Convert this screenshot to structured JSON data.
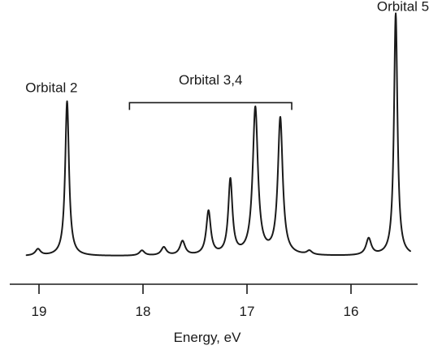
{
  "chart_data": {
    "type": "line",
    "title": "",
    "xlabel": "Energy, eV",
    "ylabel": "",
    "x_reversed": true,
    "xlim": [
      19.2,
      15.3
    ],
    "ylim": [
      0,
      1.0
    ],
    "grid": false,
    "legend": "none",
    "line_color": "#1a1a1a",
    "x_ticks": [
      {
        "value": 19,
        "label": "19"
      },
      {
        "value": 18,
        "label": "18"
      },
      {
        "value": 17,
        "label": "17"
      },
      {
        "value": 16,
        "label": "16"
      }
    ],
    "baseline": 0.03,
    "peaks": [
      {
        "x": 19.01,
        "height": 0.025,
        "width": 0.03
      },
      {
        "x": 18.73,
        "height": 0.6,
        "width": 0.022
      },
      {
        "x": 18.01,
        "height": 0.02,
        "width": 0.03
      },
      {
        "x": 17.8,
        "height": 0.032,
        "width": 0.03
      },
      {
        "x": 17.62,
        "height": 0.055,
        "width": 0.03
      },
      {
        "x": 17.37,
        "height": 0.17,
        "width": 0.026
      },
      {
        "x": 17.16,
        "height": 0.29,
        "width": 0.024
      },
      {
        "x": 16.92,
        "height": 0.57,
        "width": 0.03
      },
      {
        "x": 16.68,
        "height": 0.53,
        "width": 0.028
      },
      {
        "x": 16.4,
        "height": 0.015,
        "width": 0.03
      },
      {
        "x": 15.83,
        "height": 0.065,
        "width": 0.03
      },
      {
        "x": 15.57,
        "height": 0.94,
        "width": 0.02
      }
    ],
    "annotations": [
      {
        "text": "Orbital 2",
        "x": 18.88,
        "y": 0.665
      },
      {
        "text": "Orbital 3,4",
        "x": 17.35,
        "y": 0.695
      },
      {
        "text": "Orbital 5",
        "x": 15.5,
        "y": 0.98
      }
    ],
    "bracket": {
      "x_start": 18.13,
      "x_end": 16.57,
      "y": 0.625
    }
  }
}
